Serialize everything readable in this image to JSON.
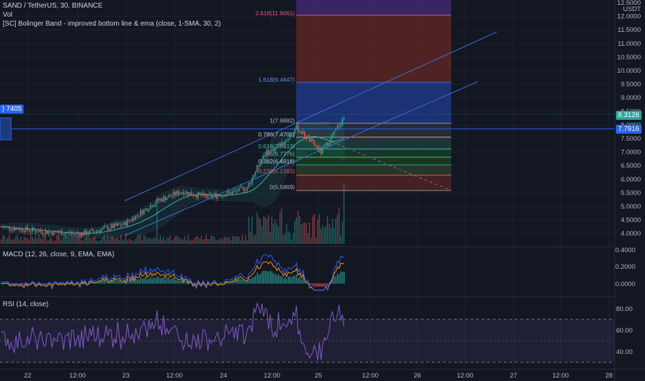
{
  "header": {
    "symbol": "SAND / TetherUS, 30, BINANCE",
    "vol_label": "Vol",
    "indicator": "[SC] Bolinger Band - improved bottom line & ema (close, 1-SMA, 30, 2)"
  },
  "macd_panel": {
    "label": "MACD (12, 26, close, 9, EMA, EMA)",
    "ticks": [
      "0.4000",
      "0.2000",
      "0.0000"
    ]
  },
  "rsi_panel": {
    "label": "RSI (14, close)",
    "ticks": [
      "80.00",
      "60.00",
      "40.00"
    ]
  },
  "price_axis": {
    "currency": "USDT",
    "ticks": [
      "12.5000",
      "12.0000",
      "11.5000",
      "11.0000",
      "10.5000",
      "10.0000",
      "9.5000",
      "9.0000",
      "8.5000",
      "8.0000",
      "7.5000",
      "7.0000",
      "6.5000",
      "6.0000",
      "5.5000",
      "5.0000",
      "4.5000",
      "4.0000"
    ],
    "last_price": "8.3128",
    "line_price": "7.7916"
  },
  "left_tag": ") 7405",
  "time_axis": [
    "22",
    "12:00",
    "23",
    "12:00",
    "24",
    "12:00",
    "25",
    "12:00",
    "26",
    "12:00",
    "27",
    "12:00",
    "28"
  ],
  "fib_labels": [
    "2.618(11.9061)",
    "1.618(9.4847)",
    "1(7.9882)",
    "0.786(7.4701)",
    "0.618(7.0613)",
    "0.5(6.7776)",
    "0.382(6.4918)",
    "0.236(6.1383)",
    "0(5.5869)"
  ],
  "colors": {
    "background": "#131722",
    "up": "#26a69a",
    "down": "#ef5350",
    "accent": "#2962ff",
    "rsi": "#7e57c2"
  },
  "icons": [
    "none"
  ]
}
